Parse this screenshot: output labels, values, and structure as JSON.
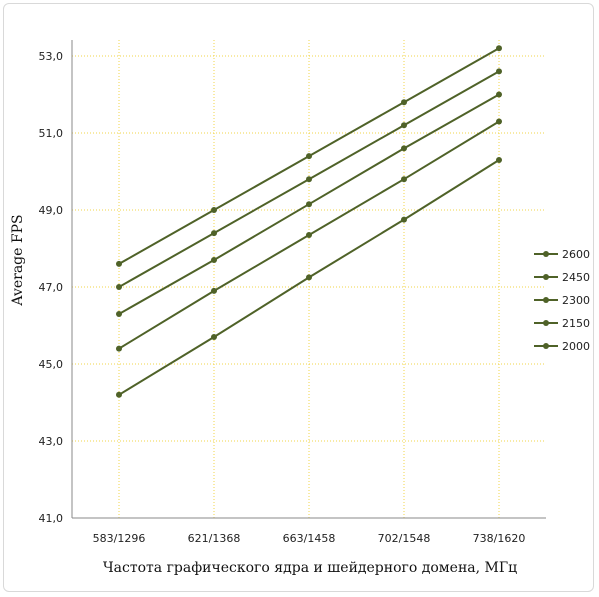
{
  "chart_data": {
    "type": "line",
    "categories": [
      "583/1296",
      "621/1368",
      "663/1458",
      "702/1548",
      "738/1620"
    ],
    "series": [
      {
        "name": "2600",
        "values": [
          47.6,
          49.0,
          50.4,
          51.8,
          53.2
        ]
      },
      {
        "name": "2450",
        "values": [
          47.0,
          48.4,
          49.8,
          51.2,
          52.6
        ]
      },
      {
        "name": "2300",
        "values": [
          46.3,
          47.7,
          49.15,
          50.6,
          52.0
        ]
      },
      {
        "name": "2150",
        "values": [
          45.4,
          46.9,
          48.35,
          49.8,
          51.3
        ]
      },
      {
        "name": "2000",
        "values": [
          44.2,
          45.7,
          47.25,
          48.75,
          50.3
        ]
      }
    ],
    "xlabel": "Частота графического ядра и шейдерного домена, МГц",
    "ylabel": "Average FPS",
    "ylim": [
      41,
      53
    ],
    "yticks": [
      "41,0",
      "43,0",
      "45,0",
      "47,0",
      "49,0",
      "51,0",
      "53,0"
    ],
    "ytick_values": [
      41,
      43,
      45,
      47,
      49,
      51,
      53
    ],
    "grid": true,
    "legend_position": "right",
    "colors": {
      "series_line": "#4f6228",
      "marker": "#4f6228",
      "grid": "#f2d44a",
      "axis": "#888888"
    }
  }
}
